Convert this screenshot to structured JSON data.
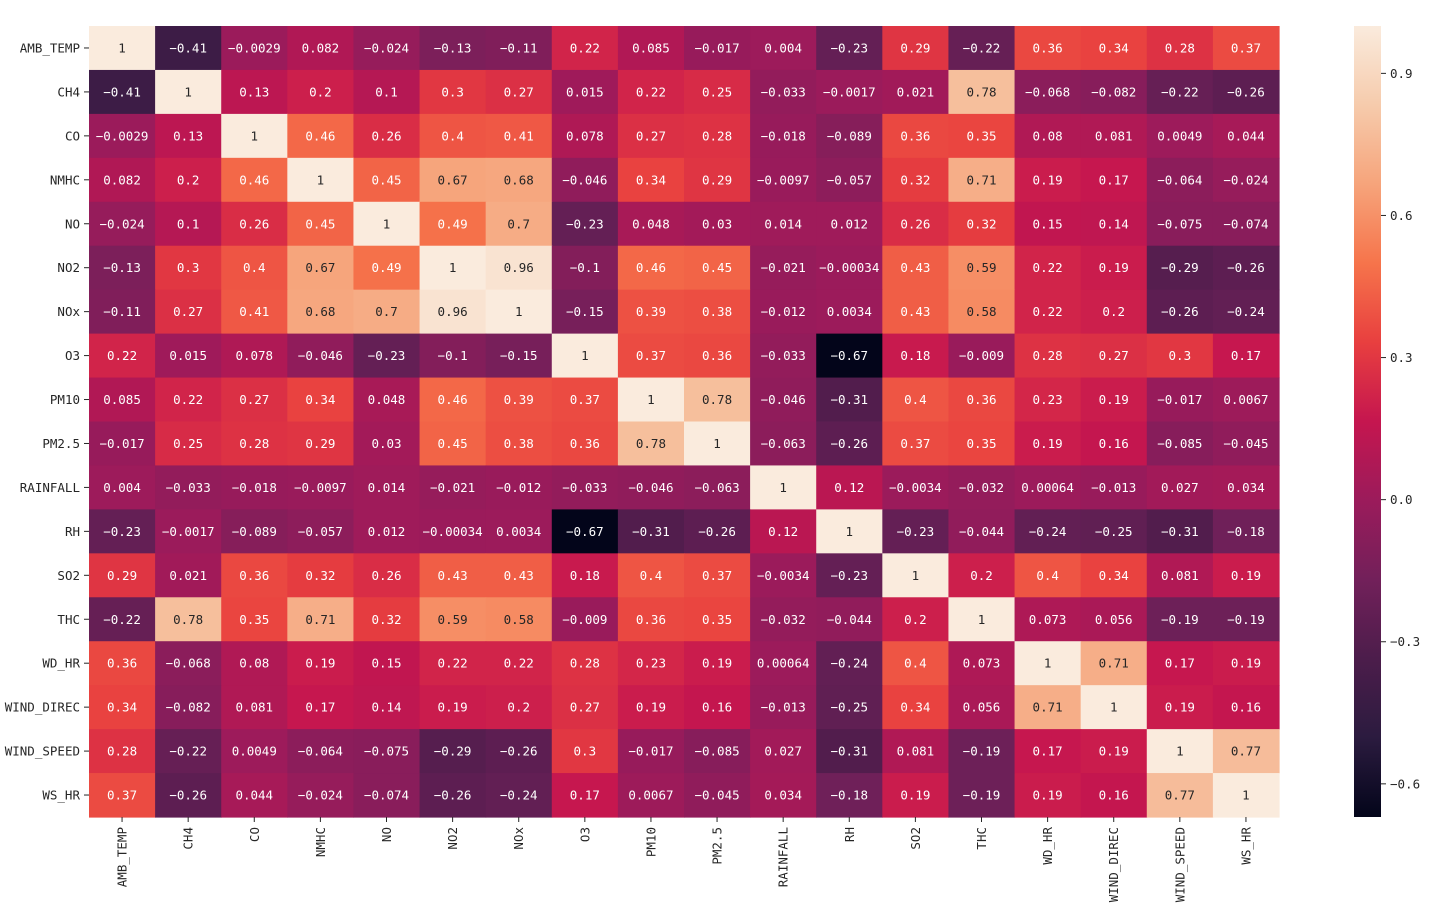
{
  "chart_data": {
    "type": "heatmap",
    "title": "",
    "xlabel": "",
    "ylabel": "",
    "labels": [
      "AMB_TEMP",
      "CH4",
      "CO",
      "NMHC",
      "NO",
      "NO2",
      "NOx",
      "O3",
      "PM10",
      "PM2.5",
      "RAINFALL",
      "RH",
      "SO2",
      "THC",
      "WD_HR",
      "WIND_DIREC",
      "WIND_SPEED",
      "WS_HR"
    ],
    "values": [
      [
        "1",
        "-0.41",
        "-0.0029",
        "0.082",
        "-0.024",
        "-0.13",
        "-0.11",
        "0.22",
        "0.085",
        "-0.017",
        "0.004",
        "-0.23",
        "0.29",
        "-0.22",
        "0.36",
        "0.34",
        "0.28",
        "0.37"
      ],
      [
        "-0.41",
        "1",
        "0.13",
        "0.2",
        "0.1",
        "0.3",
        "0.27",
        "0.015",
        "0.22",
        "0.25",
        "-0.033",
        "-0.0017",
        "0.021",
        "0.78",
        "-0.068",
        "-0.082",
        "-0.22",
        "-0.26"
      ],
      [
        "-0.0029",
        "0.13",
        "1",
        "0.46",
        "0.26",
        "0.4",
        "0.41",
        "0.078",
        "0.27",
        "0.28",
        "-0.018",
        "-0.089",
        "0.36",
        "0.35",
        "0.08",
        "0.081",
        "0.0049",
        "0.044"
      ],
      [
        "0.082",
        "0.2",
        "0.46",
        "1",
        "0.45",
        "0.67",
        "0.68",
        "-0.046",
        "0.34",
        "0.29",
        "-0.0097",
        "-0.057",
        "0.32",
        "0.71",
        "0.19",
        "0.17",
        "-0.064",
        "-0.024"
      ],
      [
        "-0.024",
        "0.1",
        "0.26",
        "0.45",
        "1",
        "0.49",
        "0.7",
        "-0.23",
        "0.048",
        "0.03",
        "0.014",
        "0.012",
        "0.26",
        "0.32",
        "0.15",
        "0.14",
        "-0.075",
        "-0.074"
      ],
      [
        "-0.13",
        "0.3",
        "0.4",
        "0.67",
        "0.49",
        "1",
        "0.96",
        "-0.1",
        "0.46",
        "0.45",
        "-0.021",
        "-0.00034",
        "0.43",
        "0.59",
        "0.22",
        "0.19",
        "-0.29",
        "-0.26"
      ],
      [
        "-0.11",
        "0.27",
        "0.41",
        "0.68",
        "0.7",
        "0.96",
        "1",
        "-0.15",
        "0.39",
        "0.38",
        "-0.012",
        "0.0034",
        "0.43",
        "0.58",
        "0.22",
        "0.2",
        "-0.26",
        "-0.24"
      ],
      [
        "0.22",
        "0.015",
        "0.078",
        "-0.046",
        "-0.23",
        "-0.1",
        "-0.15",
        "1",
        "0.37",
        "0.36",
        "-0.033",
        "-0.67",
        "0.18",
        "-0.009",
        "0.28",
        "0.27",
        "0.3",
        "0.17"
      ],
      [
        "0.085",
        "0.22",
        "0.27",
        "0.34",
        "0.048",
        "0.46",
        "0.39",
        "0.37",
        "1",
        "0.78",
        "-0.046",
        "-0.31",
        "0.4",
        "0.36",
        "0.23",
        "0.19",
        "-0.017",
        "0.0067"
      ],
      [
        "-0.017",
        "0.25",
        "0.28",
        "0.29",
        "0.03",
        "0.45",
        "0.38",
        "0.36",
        "0.78",
        "1",
        "-0.063",
        "-0.26",
        "0.37",
        "0.35",
        "0.19",
        "0.16",
        "-0.085",
        "-0.045"
      ],
      [
        "0.004",
        "-0.033",
        "-0.018",
        "-0.0097",
        "0.014",
        "-0.021",
        "-0.012",
        "-0.033",
        "-0.046",
        "-0.063",
        "1",
        "0.12",
        "-0.0034",
        "-0.032",
        "0.00064",
        "-0.013",
        "0.027",
        "0.034"
      ],
      [
        "-0.23",
        "-0.0017",
        "-0.089",
        "-0.057",
        "0.012",
        "-0.00034",
        "0.0034",
        "-0.67",
        "-0.31",
        "-0.26",
        "0.12",
        "1",
        "-0.23",
        "-0.044",
        "-0.24",
        "-0.25",
        "-0.31",
        "-0.18"
      ],
      [
        "0.29",
        "0.021",
        "0.36",
        "0.32",
        "0.26",
        "0.43",
        "0.43",
        "0.18",
        "0.4",
        "0.37",
        "-0.0034",
        "-0.23",
        "1",
        "0.2",
        "0.4",
        "0.34",
        "0.081",
        "0.19"
      ],
      [
        "-0.22",
        "0.78",
        "0.35",
        "0.71",
        "0.32",
        "0.59",
        "0.58",
        "-0.009",
        "0.36",
        "0.35",
        "-0.032",
        "-0.044",
        "0.2",
        "1",
        "0.073",
        "0.056",
        "-0.19",
        "-0.19"
      ],
      [
        "0.36",
        "-0.068",
        "0.08",
        "0.19",
        "0.15",
        "0.22",
        "0.22",
        "0.28",
        "0.23",
        "0.19",
        "0.00064",
        "-0.24",
        "0.4",
        "0.073",
        "1",
        "0.71",
        "0.17",
        "0.19"
      ],
      [
        "0.34",
        "-0.082",
        "0.081",
        "0.17",
        "0.14",
        "0.19",
        "0.2",
        "0.27",
        "0.19",
        "0.16",
        "-0.013",
        "-0.25",
        "0.34",
        "0.056",
        "0.71",
        "1",
        "0.19",
        "0.16"
      ],
      [
        "0.28",
        "-0.22",
        "0.0049",
        "-0.064",
        "-0.075",
        "-0.29",
        "-0.26",
        "0.3",
        "-0.017",
        "-0.085",
        "0.027",
        "-0.31",
        "0.081",
        "-0.19",
        "0.17",
        "0.19",
        "1",
        "0.77"
      ],
      [
        "0.37",
        "-0.26",
        "0.044",
        "-0.024",
        "-0.074",
        "-0.26",
        "-0.24",
        "0.17",
        "0.0067",
        "-0.045",
        "0.034",
        "-0.18",
        "0.19",
        "-0.19",
        "0.19",
        "0.16",
        "0.77",
        "1"
      ]
    ],
    "colorbar": {
      "vmin": -0.67,
      "vmax": 1.0,
      "ticks": [
        {
          "value": 0.9,
          "label": "0.9"
        },
        {
          "value": 0.6,
          "label": "0.6"
        },
        {
          "value": 0.3,
          "label": "0.3"
        },
        {
          "value": 0.0,
          "label": "0.0"
        },
        {
          "value": -0.3,
          "label": "−0.3"
        },
        {
          "value": -0.6,
          "label": "−0.6"
        }
      ]
    },
    "colormap": [
      "#03051a",
      "#2b1b3f",
      "#4c1d4b",
      "#72205a",
      "#9b1b5b",
      "#c5164f",
      "#e83f3f",
      "#f6744b",
      "#f6a47b",
      "#f6cbac",
      "#faebdd"
    ]
  }
}
